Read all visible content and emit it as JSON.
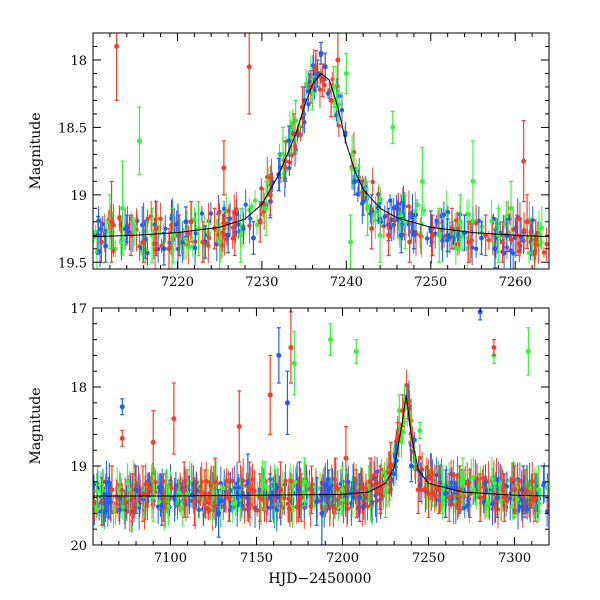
{
  "figure": {
    "xlabel": "HJD−2450000",
    "colors": {
      "blue": "#1e5ef0",
      "green": "#3ef03e",
      "red": "#f0402a",
      "model": "#000000"
    }
  },
  "chart_data": [
    {
      "type": "scatter",
      "panel": "top",
      "ylabel": "Magnitude",
      "xlim": [
        7210,
        7264
      ],
      "ylim": [
        19.55,
        17.8
      ],
      "xticks": [
        7220,
        7230,
        7240,
        7250,
        7260
      ],
      "yticks": [
        18,
        18.5,
        19,
        19.5
      ],
      "model_curve": {
        "x": [
          7210,
          7215,
          7220,
          7225,
          7228,
          7230,
          7232,
          7234,
          7235,
          7236,
          7237,
          7238,
          7239,
          7240,
          7241,
          7242,
          7244,
          7246,
          7250,
          7255,
          7260,
          7264
        ],
        "y": [
          19.31,
          19.3,
          19.28,
          19.24,
          19.18,
          19.07,
          18.85,
          18.55,
          18.35,
          18.18,
          18.1,
          18.15,
          18.35,
          18.62,
          18.82,
          18.96,
          19.1,
          19.17,
          19.24,
          19.28,
          19.3,
          19.31
        ]
      },
      "series": [
        {
          "name": "blue",
          "color": "#1e5ef0",
          "points": [
            [
              7210.6,
              19.3,
              0.14
            ],
            [
              7211.5,
              19.38,
              0.12
            ],
            [
              7214,
              19.25,
              0.1
            ],
            [
              7216.2,
              19.33,
              0.14
            ],
            [
              7218.4,
              19.4,
              0.12
            ],
            [
              7221,
              19.2,
              0.11
            ],
            [
              7223.3,
              19.35,
              0.12
            ],
            [
              7226,
              19.3,
              0.13
            ],
            [
              7229,
              19.32,
              0.12
            ],
            [
              7231,
              19.05,
              0.12
            ],
            [
              7232,
              18.85,
              0.12
            ],
            [
              7233.2,
              18.6,
              0.11
            ],
            [
              7235,
              18.3,
              0.1
            ],
            [
              7236.6,
              18.1,
              0.1
            ],
            [
              7237,
              17.95,
              0.08
            ],
            [
              7237.5,
              18.05,
              0.1
            ],
            [
              7241,
              18.9,
              0.1
            ],
            [
              7242,
              19.05,
              0.1
            ],
            [
              7243,
              19.12,
              0.12
            ],
            [
              7244,
              19.18,
              0.12
            ],
            [
              7245,
              19.22,
              0.12
            ],
            [
              7246.5,
              19.3,
              0.13
            ],
            [
              7248,
              19.28,
              0.12
            ],
            [
              7250,
              19.25,
              0.13
            ],
            [
              7252,
              19.3,
              0.12
            ],
            [
              7254,
              19.28,
              0.13
            ],
            [
              7256,
              19.32,
              0.12
            ],
            [
              7257.6,
              19.4,
              0.14
            ],
            [
              7259,
              19.3,
              0.12
            ]
          ]
        },
        {
          "name": "green",
          "color": "#3ef03e",
          "points": [
            [
              7212,
              19.2,
              0.2
            ],
            [
              7213.5,
              19.1,
              0.35
            ],
            [
              7215.5,
              18.6,
              0.25
            ],
            [
              7217,
              19.3,
              0.2
            ],
            [
              7219.5,
              19.3,
              0.2
            ],
            [
              7222.5,
              19.25,
              0.2
            ],
            [
              7225,
              19.35,
              0.2
            ],
            [
              7227.5,
              19.3,
              0.2
            ],
            [
              7230.5,
              19.1,
              0.2
            ],
            [
              7232.5,
              18.7,
              0.2
            ],
            [
              7234,
              18.45,
              0.15
            ],
            [
              7236,
              18.25,
              0.12
            ],
            [
              7238.5,
              18.2,
              0.15
            ],
            [
              7240,
              18.1,
              0.15
            ],
            [
              7240.5,
              19.35,
              0.2
            ],
            [
              7242.5,
              19.1,
              0.2
            ],
            [
              7244,
              19.3,
              0.2
            ],
            [
              7245.5,
              18.5,
              0.12
            ],
            [
              7247,
              19.2,
              0.2
            ],
            [
              7249,
              18.9,
              0.25
            ],
            [
              7251,
              19.3,
              0.2
            ],
            [
              7253.5,
              19.2,
              0.2
            ],
            [
              7255,
              18.9,
              0.3
            ],
            [
              7258,
              19.3,
              0.2
            ],
            [
              7259.5,
              19.1,
              0.2
            ]
          ]
        },
        {
          "name": "red",
          "color": "#f0402a",
          "points": [
            [
              7211,
              19.35,
              0.15
            ],
            [
              7212.2,
              19.2,
              0.3
            ],
            [
              7212.8,
              17.9,
              0.4
            ],
            [
              7214.5,
              19.3,
              0.15
            ],
            [
              7216,
              19.35,
              0.15
            ],
            [
              7217.5,
              19.25,
              0.2
            ],
            [
              7219,
              19.4,
              0.15
            ],
            [
              7220.2,
              19.3,
              0.15
            ],
            [
              7221.6,
              19.2,
              0.15
            ],
            [
              7223,
              19.35,
              0.15
            ],
            [
              7224.4,
              19.25,
              0.15
            ],
            [
              7225.5,
              18.8,
              0.2
            ],
            [
              7226.8,
              19.3,
              0.15
            ],
            [
              7228.5,
              18.05,
              0.35
            ],
            [
              7229.8,
              19.2,
              0.15
            ],
            [
              7231,
              19.0,
              0.15
            ],
            [
              7232.8,
              18.75,
              0.15
            ],
            [
              7233.8,
              18.55,
              0.15
            ],
            [
              7234.8,
              18.35,
              0.15
            ],
            [
              7235.8,
              18.2,
              0.12
            ],
            [
              7236.4,
              18.05,
              0.12
            ],
            [
              7237.2,
              18.15,
              0.12
            ],
            [
              7238.2,
              18.3,
              0.12
            ],
            [
              7239,
              18.0,
              0.2
            ],
            [
              7243,
              19.25,
              0.15
            ],
            [
              7245,
              19.3,
              0.15
            ],
            [
              7247.5,
              19.35,
              0.15
            ],
            [
              7250.2,
              19.3,
              0.15
            ],
            [
              7252.5,
              19.25,
              0.15
            ],
            [
              7254.5,
              19.35,
              0.15
            ],
            [
              7256.5,
              19.3,
              0.15
            ],
            [
              7258.5,
              19.35,
              0.15
            ],
            [
              7260.2,
              19.3,
              0.15
            ],
            [
              7261,
              18.75,
              0.3
            ],
            [
              7261.4,
              19.2,
              0.2
            ]
          ]
        }
      ]
    },
    {
      "type": "scatter",
      "panel": "bottom",
      "ylabel": "Magnitude",
      "xlabel": "HJD−2450000",
      "xlim": [
        7055,
        7320
      ],
      "ylim": [
        20,
        17
      ],
      "xticks": [
        7100,
        7150,
        7200,
        7250,
        7300
      ],
      "yticks": [
        17,
        18,
        19,
        20
      ],
      "model_curve": {
        "x": [
          7055,
          7100,
          7150,
          7200,
          7215,
          7225,
          7230,
          7234,
          7237,
          7240,
          7244,
          7250,
          7270,
          7300,
          7320
        ],
        "y": [
          19.38,
          19.38,
          19.37,
          19.36,
          19.33,
          19.22,
          19.02,
          18.55,
          18.1,
          18.6,
          19.05,
          19.22,
          19.33,
          19.37,
          19.38
        ]
      },
      "series": [
        {
          "name": "blue",
          "color": "#1e5ef0",
          "points": [
            [
              7064,
              19.4,
              0.25
            ],
            [
              7072,
              18.25,
              0.1
            ],
            [
              7080,
              19.3,
              0.3
            ],
            [
              7095,
              19.5,
              0.25
            ],
            [
              7110,
              19.35,
              0.3
            ],
            [
              7128,
              19.6,
              0.3
            ],
            [
              7145,
              19.2,
              0.35
            ],
            [
              7158,
              19.4,
              0.3
            ],
            [
              7163,
              17.6,
              0.35
            ],
            [
              7168,
              18.2,
              0.4
            ],
            [
              7175,
              19.3,
              0.35
            ],
            [
              7185,
              19.45,
              0.3
            ],
            [
              7188,
              19.6,
              0.4
            ],
            [
              7192,
              19.3,
              0.25
            ],
            [
              7210,
              19.4,
              0.3
            ],
            [
              7222,
              19.3,
              0.25
            ],
            [
              7240,
              19.0,
              0.2
            ],
            [
              7245,
              19.25,
              0.2
            ],
            [
              7260,
              19.35,
              0.3
            ],
            [
              7270,
              19.3,
              0.25
            ],
            [
              7280,
              17.05,
              0.1
            ],
            [
              7290,
              19.4,
              0.25
            ],
            [
              7305,
              19.3,
              0.3
            ]
          ]
        },
        {
          "name": "green",
          "color": "#3ef03e",
          "points": [
            [
              7090,
              19.4,
              0.3
            ],
            [
              7110,
              19.35,
              0.3
            ],
            [
              7155,
              19.25,
              0.3
            ],
            [
              7172,
              17.7,
              0.4
            ],
            [
              7178,
              19.2,
              0.3
            ],
            [
              7193,
              17.4,
              0.2
            ],
            [
              7200,
              19.3,
              0.3
            ],
            [
              7208,
              17.55,
              0.15
            ],
            [
              7225,
              19.35,
              0.3
            ],
            [
              7233,
              18.3,
              0.2
            ],
            [
              7245,
              18.55,
              0.1
            ],
            [
              7258,
              19.3,
              0.3
            ],
            [
              7270,
              19.2,
              0.3
            ],
            [
              7288,
              17.6,
              0.1
            ],
            [
              7300,
              19.35,
              0.3
            ],
            [
              7308,
              17.55,
              0.3
            ],
            [
              7314,
              19.3,
              0.3
            ]
          ]
        },
        {
          "name": "red",
          "color": "#f0402a",
          "points": [
            [
              7060,
              19.45,
              0.3
            ],
            [
              7066,
              19.3,
              0.3
            ],
            [
              7072,
              18.65,
              0.1
            ],
            [
              7078,
              19.4,
              0.3
            ],
            [
              7084,
              19.35,
              0.35
            ],
            [
              7090,
              18.7,
              0.4
            ],
            [
              7096,
              19.4,
              0.3
            ],
            [
              7102,
              18.4,
              0.45
            ],
            [
              7108,
              19.3,
              0.35
            ],
            [
              7114,
              19.45,
              0.3
            ],
            [
              7120,
              19.35,
              0.3
            ],
            [
              7126,
              19.2,
              0.3
            ],
            [
              7134,
              19.4,
              0.3
            ],
            [
              7140,
              18.5,
              0.45
            ],
            [
              7146,
              19.3,
              0.35
            ],
            [
              7152,
              19.4,
              0.3
            ],
            [
              7158,
              18.1,
              0.5
            ],
            [
              7164,
              19.3,
              0.35
            ],
            [
              7170,
              17.5,
              0.45
            ],
            [
              7176,
              19.4,
              0.3
            ],
            [
              7182,
              19.3,
              0.3
            ],
            [
              7196,
              19.25,
              0.35
            ],
            [
              7202,
              18.9,
              0.4
            ],
            [
              7208,
              19.35,
              0.3
            ],
            [
              7216,
              19.2,
              0.3
            ],
            [
              7222,
              19.3,
              0.3
            ],
            [
              7228,
              19.0,
              0.3
            ],
            [
              7232,
              18.65,
              0.2
            ],
            [
              7235,
              18.3,
              0.2
            ],
            [
              7238,
              18.2,
              0.2
            ],
            [
              7244,
              19.3,
              0.3
            ],
            [
              7250,
              19.35,
              0.3
            ],
            [
              7256,
              19.3,
              0.3
            ],
            [
              7262,
              19.4,
              0.3
            ],
            [
              7268,
              19.3,
              0.3
            ],
            [
              7274,
              19.35,
              0.3
            ],
            [
              7280,
              19.4,
              0.3
            ],
            [
              7288,
              17.5,
              0.1
            ],
            [
              7294,
              19.4,
              0.3
            ],
            [
              7300,
              19.3,
              0.3
            ],
            [
              7306,
              19.35,
              0.3
            ],
            [
              7312,
              19.4,
              0.3
            ]
          ]
        }
      ]
    }
  ]
}
